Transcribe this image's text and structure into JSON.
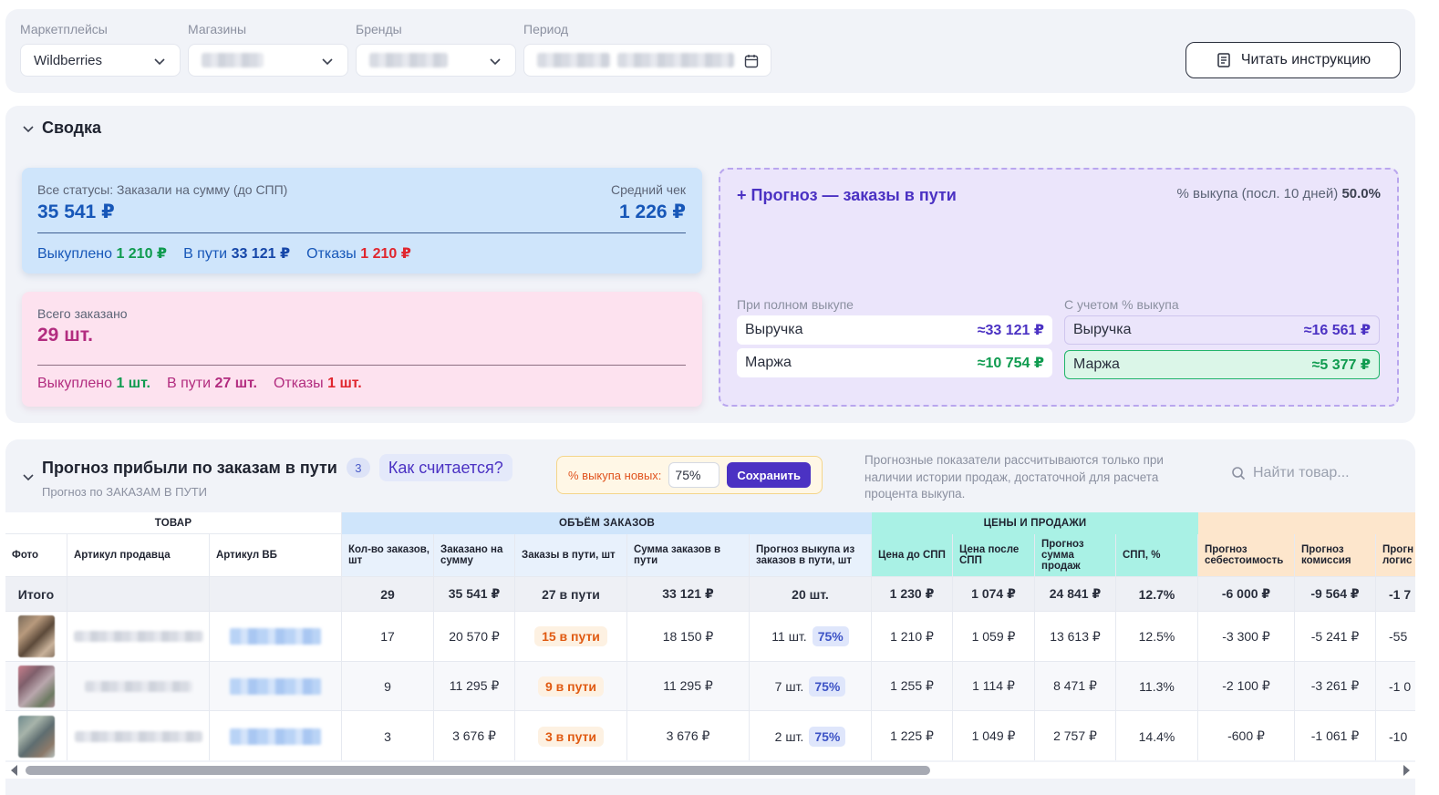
{
  "filters": {
    "marketplaces": {
      "label": "Маркетплейсы",
      "value": "Wildberries"
    },
    "stores": {
      "label": "Магазины"
    },
    "brands": {
      "label": "Бренды"
    },
    "period": {
      "label": "Период"
    },
    "instruction_button": "Читать инструкцию"
  },
  "summary": {
    "title": "Сводка",
    "orders_card": {
      "label": "Все статусы: Заказали на сумму (до СПП)",
      "total": "35 541 ₽",
      "avg_label": "Средний чек",
      "avg_value": "1 226 ₽",
      "bought_label": "Выкуплено",
      "bought_value": "1 210 ₽",
      "transit_label": "В пути",
      "transit_value": "33 121 ₽",
      "refused_label": "Отказы",
      "refused_value": "1 210 ₽"
    },
    "count_card": {
      "label": "Всего заказано",
      "total": "29 шт.",
      "bought_label": "Выкуплено",
      "bought_value": "1 шт.",
      "transit_label": "В пути",
      "transit_value": "27 шт.",
      "refused_label": "Отказы",
      "refused_value": "1 шт."
    },
    "forecast_card": {
      "title": "+ Прогноз — заказы в пути",
      "rate_label": "% выкупа (посл. 10 дней)",
      "rate_value": "50.0%",
      "full": {
        "label": "При полном выкупе",
        "revenue_label": "Выручка",
        "revenue_value": "≈33 121 ₽",
        "margin_label": "Маржа",
        "margin_value": "≈10 754 ₽"
      },
      "adjusted": {
        "label": "С учетом % выкупа",
        "revenue_label": "Выручка",
        "revenue_value": "≈16 561 ₽",
        "margin_label": "Маржа",
        "margin_value": "≈5 377 ₽"
      }
    }
  },
  "profit": {
    "title": "Прогноз прибыли по заказам в пути",
    "count_badge": "3",
    "how_button": "Как считается?",
    "subtitle": "Прогноз по ЗАКАЗАМ В ПУТИ",
    "rate_label": "% выкупа новых:",
    "rate_value": "75%",
    "save_button": "Сохранить",
    "note": "Прогнозные показатели рассчитываются только при наличии истории продаж, достаточной для расчета процента выкупа.",
    "search_placeholder": "Найти товар..."
  },
  "table": {
    "groups": [
      "ТОВАР",
      "ОБЪЁМ ЗАКАЗОВ",
      "ЦЕНЫ И ПРОДАЖИ"
    ],
    "headers": [
      "Фото",
      "Артикул продавца",
      "Артикул ВБ",
      "Кол-во заказов, шт",
      "Заказано на сумму",
      "Заказы в пути, шт",
      "Сумма заказов в пути",
      "Прогноз выкупа из заказов в пути, шт",
      "Цена до СПП",
      "Цена после СПП",
      "Прогноз сумма продаж",
      "СПП, %",
      "Прогноз себестоимость",
      "Прогноз комиссия",
      "Прогн логис"
    ],
    "total": {
      "label": "Итого",
      "qty": "29",
      "ordered_sum": "35 541 ₽",
      "in_transit": "27 в пути",
      "transit_sum": "33 121 ₽",
      "forecast_buyout": "20 шт.",
      "price_before": "1 230 ₽",
      "price_after": "1 074 ₽",
      "forecast_sales": "24 841 ₽",
      "spp": "12.7%",
      "cost": "-6 000 ₽",
      "commission": "-9 564 ₽",
      "logistics": "-1 7"
    },
    "rows": [
      {
        "qty": "17",
        "ordered_sum": "20 570 ₽",
        "in_transit": "15 в пути",
        "transit_sum": "18 150 ₽",
        "forecast_qty": "11 шт.",
        "forecast_pct": "75%",
        "price_before": "1 210 ₽",
        "price_after": "1 059 ₽",
        "forecast_sales": "13 613 ₽",
        "spp": "12.5%",
        "cost": "-3 300 ₽",
        "commission": "-5 241 ₽",
        "logistics": "-55"
      },
      {
        "qty": "9",
        "ordered_sum": "11 295 ₽",
        "in_transit": "9 в пути",
        "transit_sum": "11 295 ₽",
        "forecast_qty": "7 шт.",
        "forecast_pct": "75%",
        "price_before": "1 255 ₽",
        "price_after": "1 114 ₽",
        "forecast_sales": "8 471 ₽",
        "spp": "11.3%",
        "cost": "-2 100 ₽",
        "commission": "-3 261 ₽",
        "logistics": "-1 0"
      },
      {
        "qty": "3",
        "ordered_sum": "3 676 ₽",
        "in_transit": "3 в пути",
        "transit_sum": "3 676 ₽",
        "forecast_qty": "2 шт.",
        "forecast_pct": "75%",
        "price_before": "1 225 ₽",
        "price_after": "1 049 ₽",
        "forecast_sales": "2 757 ₽",
        "spp": "14.4%",
        "cost": "-600 ₽",
        "commission": "-1 061 ₽",
        "logistics": "-10"
      }
    ]
  }
}
